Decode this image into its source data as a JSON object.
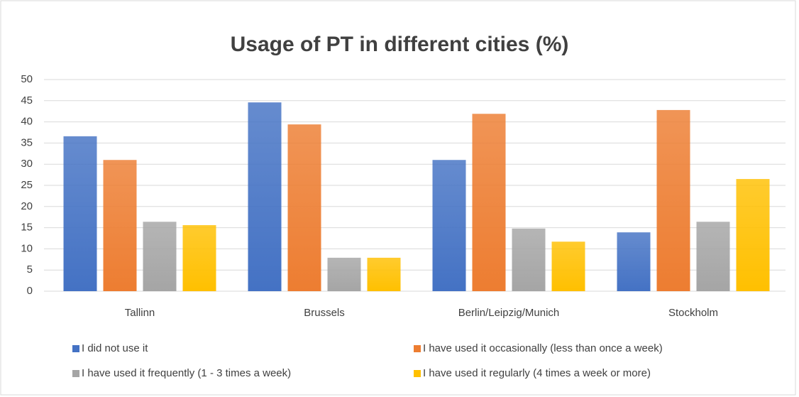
{
  "chart_data": {
    "type": "bar",
    "title": "Usage of PT in different cities (%)",
    "categories": [
      "Tallinn",
      "Brussels",
      "Berlin/Leipzig/Munich",
      "Stockholm"
    ],
    "series": [
      {
        "name": "I did not use it",
        "color": "#4472c4",
        "values": [
          36.6,
          44.6,
          31.0,
          13.9
        ]
      },
      {
        "name": "I have used it occasionally (less than once a week)",
        "color": "#ed7d31",
        "values": [
          31.0,
          39.4,
          41.9,
          42.8
        ]
      },
      {
        "name": "I have used it frequently (1 - 3 times a week)",
        "color": "#a5a5a5",
        "values": [
          16.4,
          7.9,
          14.8,
          16.4
        ]
      },
      {
        "name": "I have used it regularly (4 times a week or more)",
        "color": "#ffc000",
        "values": [
          15.6,
          7.9,
          11.7,
          26.5
        ]
      }
    ],
    "ylim": [
      0,
      50
    ],
    "yticks": [
      0,
      5,
      10,
      15,
      20,
      25,
      30,
      35,
      40,
      45,
      50
    ],
    "grid": true,
    "legend": "bottom"
  }
}
